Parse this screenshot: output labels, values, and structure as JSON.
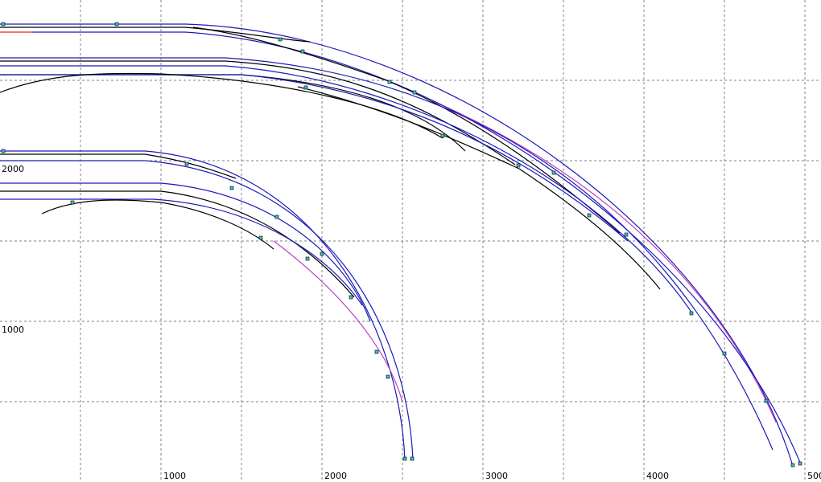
{
  "x_labels": [
    "1000",
    "2000",
    "3000",
    "4000",
    "500"
  ],
  "y_labels": [
    "2000",
    "1000"
  ]
}
